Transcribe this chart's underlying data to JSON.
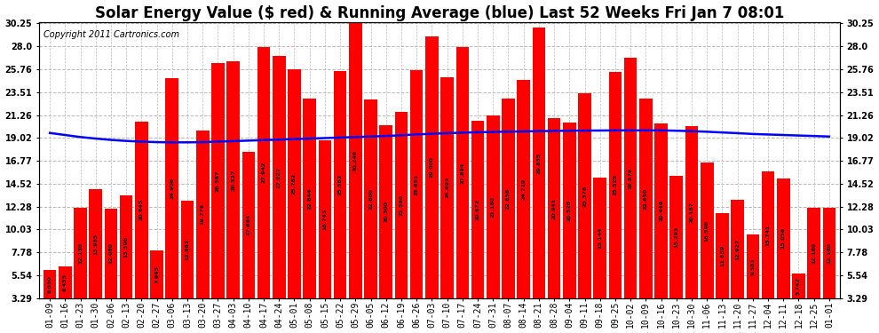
{
  "title": "Solar Energy Value ($ red) & Running Average (blue) Last 52 Weeks Fri Jan 7 08:01",
  "copyright": "Copyright 2011 Cartronics.com",
  "categories": [
    "01-09",
    "01-16",
    "01-23",
    "01-30",
    "02-06",
    "02-13",
    "02-20",
    "02-27",
    "03-06",
    "03-13",
    "03-20",
    "03-27",
    "04-03",
    "04-10",
    "04-17",
    "04-24",
    "05-01",
    "05-08",
    "05-15",
    "05-22",
    "05-29",
    "06-05",
    "06-12",
    "06-19",
    "06-26",
    "07-03",
    "07-10",
    "07-17",
    "07-24",
    "07-31",
    "08-07",
    "08-14",
    "08-21",
    "08-28",
    "09-04",
    "09-11",
    "09-18",
    "09-25",
    "10-02",
    "10-09",
    "10-16",
    "10-23",
    "10-30",
    "11-06",
    "11-13",
    "11-20",
    "11-27",
    "12-04",
    "12-11",
    "12-18",
    "12-25",
    "01-01"
  ],
  "bar_values": [
    6.03,
    6.433,
    12.13,
    13.965,
    12.08,
    13.39,
    20.643,
    7.995,
    24.906,
    12.882,
    19.776,
    26.367,
    26.527,
    17.664,
    27.942,
    27.027,
    25.782,
    22.844,
    18.743,
    25.582,
    30.249,
    22.8,
    20.3,
    21.56,
    25.651,
    29.0,
    24.993,
    27.894,
    20.672,
    21.18,
    22.858,
    24.719,
    29.835,
    20.941,
    20.528,
    23.376,
    15.144,
    25.525,
    26.876,
    22.85,
    20.449,
    15.293,
    20.187,
    16.59,
    11.639,
    12.927,
    9.581,
    15.741,
    15.058,
    5.742,
    12.18,
    12.18
  ],
  "running_avg": [
    19.5,
    19.3,
    19.1,
    18.95,
    18.82,
    18.72,
    18.65,
    18.6,
    18.58,
    18.58,
    18.6,
    18.65,
    18.7,
    18.75,
    18.8,
    18.85,
    18.9,
    18.95,
    19.0,
    19.05,
    19.1,
    19.15,
    19.2,
    19.28,
    19.35,
    19.42,
    19.48,
    19.53,
    19.57,
    19.6,
    19.63,
    19.65,
    19.68,
    19.7,
    19.72,
    19.73,
    19.74,
    19.75,
    19.75,
    19.75,
    19.75,
    19.72,
    19.68,
    19.62,
    19.55,
    19.48,
    19.4,
    19.35,
    19.3,
    19.25,
    19.2,
    19.15
  ],
  "bar_color": "#ff0000",
  "line_color": "#0000ff",
  "background_color": "#ffffff",
  "grid_color": "#bbbbbb",
  "yticks": [
    3.29,
    5.54,
    7.78,
    10.03,
    12.28,
    14.52,
    16.77,
    19.02,
    21.26,
    23.51,
    25.76,
    28.0,
    30.25
  ],
  "ymin": 3.29,
  "ymax": 30.25,
  "title_fontsize": 12,
  "copyright_fontsize": 7,
  "tick_fontsize": 7,
  "value_fontsize": 4.5
}
